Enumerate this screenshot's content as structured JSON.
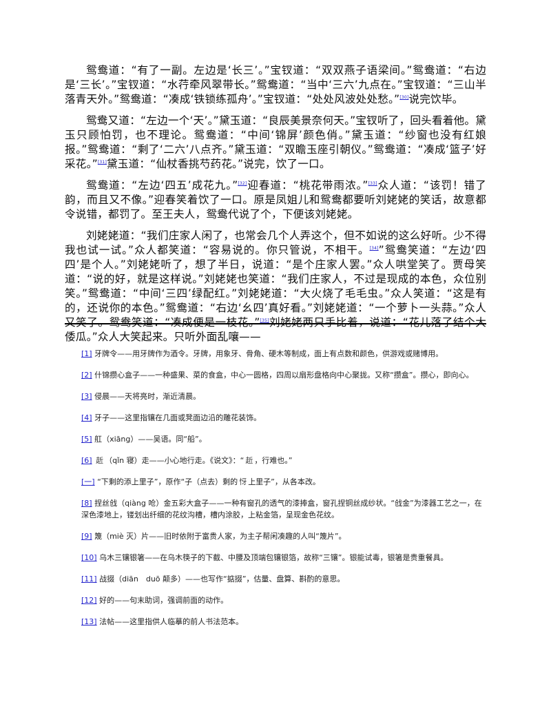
{
  "paragraphs": [
    {
      "text": "鸳鸯道：“有了一副。左边是‘长三’。”宝钗道：“双双燕子语梁间。”鸳鸯道：“右边是‘三长’。”宝钗道：“水荇牵风翠带长。”鸳鸯道：“当中‘三六’九点在。”宝钗道：“三山半落青天外。”鸳鸯道：“凑成‘铁锁练孤舟’。”宝钗道：“处处风波处处愁。”",
      "ref": "[30]",
      "tail": "说完饮毕。"
    },
    {
      "text": "鸳鸯又道：“左边一个‘天’。”黛玉道：“良辰美景奈何天。”宝钗听了，回头看着他。黛玉只顾怕罚，也不理论。鸳鸯道：“中间‘锦屏’颜色俏。”黛玉道：“纱窗也没有红娘报。”鸳鸯道：“剩了‘二六’八点齐。”黛玉道：“双瞻玉座引朝仪。”鸳鸯道：“凑成‘篮子’好采花。”",
      "ref": "[31]",
      "tail": "黛玉道：“仙杖香挑芍药花。”说完，饮了一口。"
    },
    {
      "text": "鸳鸯道：“左边‘四五’成花九。”",
      "ref": "[32]",
      "tail": "迎春道：“桃花带雨浓。”",
      "ref2": "[33]",
      "tail2": "众人道：“该罚！错了韵，而且又不像。”迎春笑着饮了一口。原是凤姐儿和鸳鸯都要听刘姥姥的笑话，故意都令说错，都罚了。至王夫人，鸳鸯代说了个，下便该刘姥姥。"
    },
    {
      "text": "刘姥姥道：“我们庄家人闲了，也常会几个人弄这个，但不如说的这么好听。少不得我也试一试。”众人都笑道：“容易说的。你只管说，不相干。",
      "ref": "[34]",
      "tail": "”鸳鸯笑道：“左边‘四四’是个人。”刘姥姥听了，想了半日，说道：“是个庄家人罢。”众人哄堂笑了。贾母笑道：“说的好，就是这样说。”刘姥姥也笑道：“我们庄家人，不过是现成的本色，众位别笑。”鸳鸯道：“中间‘三四’绿配红。”刘姥姥道：“大火烧了毛毛虫。”众人笑道：“这是有的，还说你的本色。”鸳鸯道：“右边‘幺四’真好看。”刘姥姥道：“一个萝卜一头蒜。”众人又笑了。鸳鸯笑道：“凑成便是一枝花。”",
      "ref2": "[35]",
      "tail2": "刘姥姥两只手比着，说道：“花儿落了结个大倭瓜。”众人大笑起来。只听外面乱嚷——"
    }
  ],
  "notes": [
    {
      "ref": "[1]",
      "text": " 牙牌令——用牙牌作为酒令。牙牌，用象牙、骨角、硬木等制成，面上有点数和颜色，供游戏或赌博用。"
    },
    {
      "ref": "[2]",
      "text": " 什锦攒心盒子——一种盛果、菜的食盒，中心一圆格，四周以扇形盘格向中心聚拢。又称“攒盒”。攒心，即向心。"
    },
    {
      "ref": "[3]",
      "text": " 侵晨——天将亮时，渐近清晨。"
    },
    {
      "ref": "[4]",
      "text": " 牙子——这里指镶在几面或凳面边沿的雕花装饰。"
    },
    {
      "ref": "[5]",
      "text": " 舡（xiāng）——吴语。同“船”。"
    },
    {
      "ref": "[6]",
      "pre": " ",
      "glyph": "赾",
      "mid": "（qǐn 寝）走——小心地行走。《说文》：“",
      "glyph2": "赾",
      "post": "，行难也。”"
    },
    {
      "ref": "[一]",
      "pre": " “下剩的添上里子”，原作“子（点去）剩的",
      "glyph": "㤉",
      "post": "上里子”，从各本改。"
    },
    {
      "ref": "[8]",
      "text": " 捏丝戗（qiàng 呛）金五彩大盒子——一种有窗孔的透气的漆捧盒，窗孔捏铜丝成纱状。“戗金”为漆器工艺之一，在深色漆地上，镂划出纤细的花纹沟槽，槽内涂胶，上粘金箔，呈现金色花纹。"
    },
    {
      "ref": "[9]",
      "text": " 篾（miè 灭）片——旧时依附于富贵人家，为主子帮闲凑趣的人叫“篾片”。"
    },
    {
      "ref": "[10]",
      "text": " 乌木三镶银箸——在乌木筷子的下截、中腰及顶端包镶银箔，故称“三镶”。银能试毒，银箸是贵重餐具。"
    },
    {
      "ref": "[11]",
      "text": " 战掇（diān　duō 颠多）——也写作“掂掇”，估量、盘算、斟酌的意思。"
    },
    {
      "ref": "[12]",
      "text": " 好的——句末助词，强调前面的动作。"
    },
    {
      "ref": "[13]",
      "text": " 法帖——这里指供人临摹的前人书法范本。"
    }
  ]
}
